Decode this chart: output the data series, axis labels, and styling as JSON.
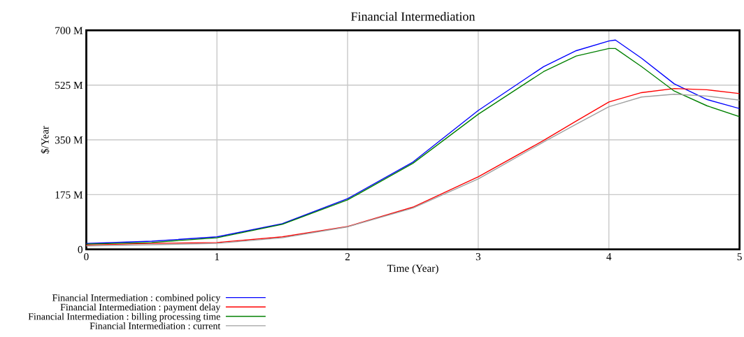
{
  "chart_data": {
    "type": "line",
    "title": "Financial Intermediation",
    "xlabel": "Time (Year)",
    "ylabel": "$/Year",
    "x": [
      0,
      0.5,
      1,
      1.5,
      2,
      2.5,
      3,
      3.5,
      3.75,
      4,
      4.05,
      4.25,
      4.5,
      4.75,
      5
    ],
    "series": [
      {
        "name": "Financial Intermediation : combined policy",
        "color": "#0000ff",
        "values": [
          19,
          26,
          40,
          82,
          162,
          279,
          444,
          584,
          635,
          666,
          669,
          611,
          529,
          479,
          450
        ]
      },
      {
        "name": "Financial Intermediation : payment delay",
        "color": "#ff0000",
        "values": [
          14,
          19,
          22,
          40,
          73,
          135,
          232,
          348,
          410,
          471,
          477,
          501,
          514,
          510,
          498
        ]
      },
      {
        "name": "Financial Intermediation : billing processing time",
        "color": "#008000",
        "values": [
          17,
          22,
          37,
          80,
          158,
          275,
          432,
          568,
          618,
          642,
          642,
          584,
          506,
          459,
          424
        ]
      },
      {
        "name": "Financial Intermediation : current",
        "color": "#a0a0a0",
        "values": [
          11,
          15,
          19,
          37,
          72,
          132,
          225,
          343,
          400,
          456,
          462,
          487,
          496,
          490,
          477
        ]
      }
    ],
    "xlim": [
      0,
      5
    ],
    "xticks": [
      0,
      1,
      2,
      3,
      4,
      5
    ],
    "ylim": [
      0,
      700
    ],
    "yticks": [
      {
        "value": 0,
        "label": "0"
      },
      {
        "value": 175,
        "label": "175 M"
      },
      {
        "value": 350,
        "label": "350 M"
      },
      {
        "value": 525,
        "label": "525 M"
      },
      {
        "value": 700,
        "label": "700 M"
      }
    ],
    "grid": true,
    "legend": "bottom",
    "line_style": "solid"
  }
}
